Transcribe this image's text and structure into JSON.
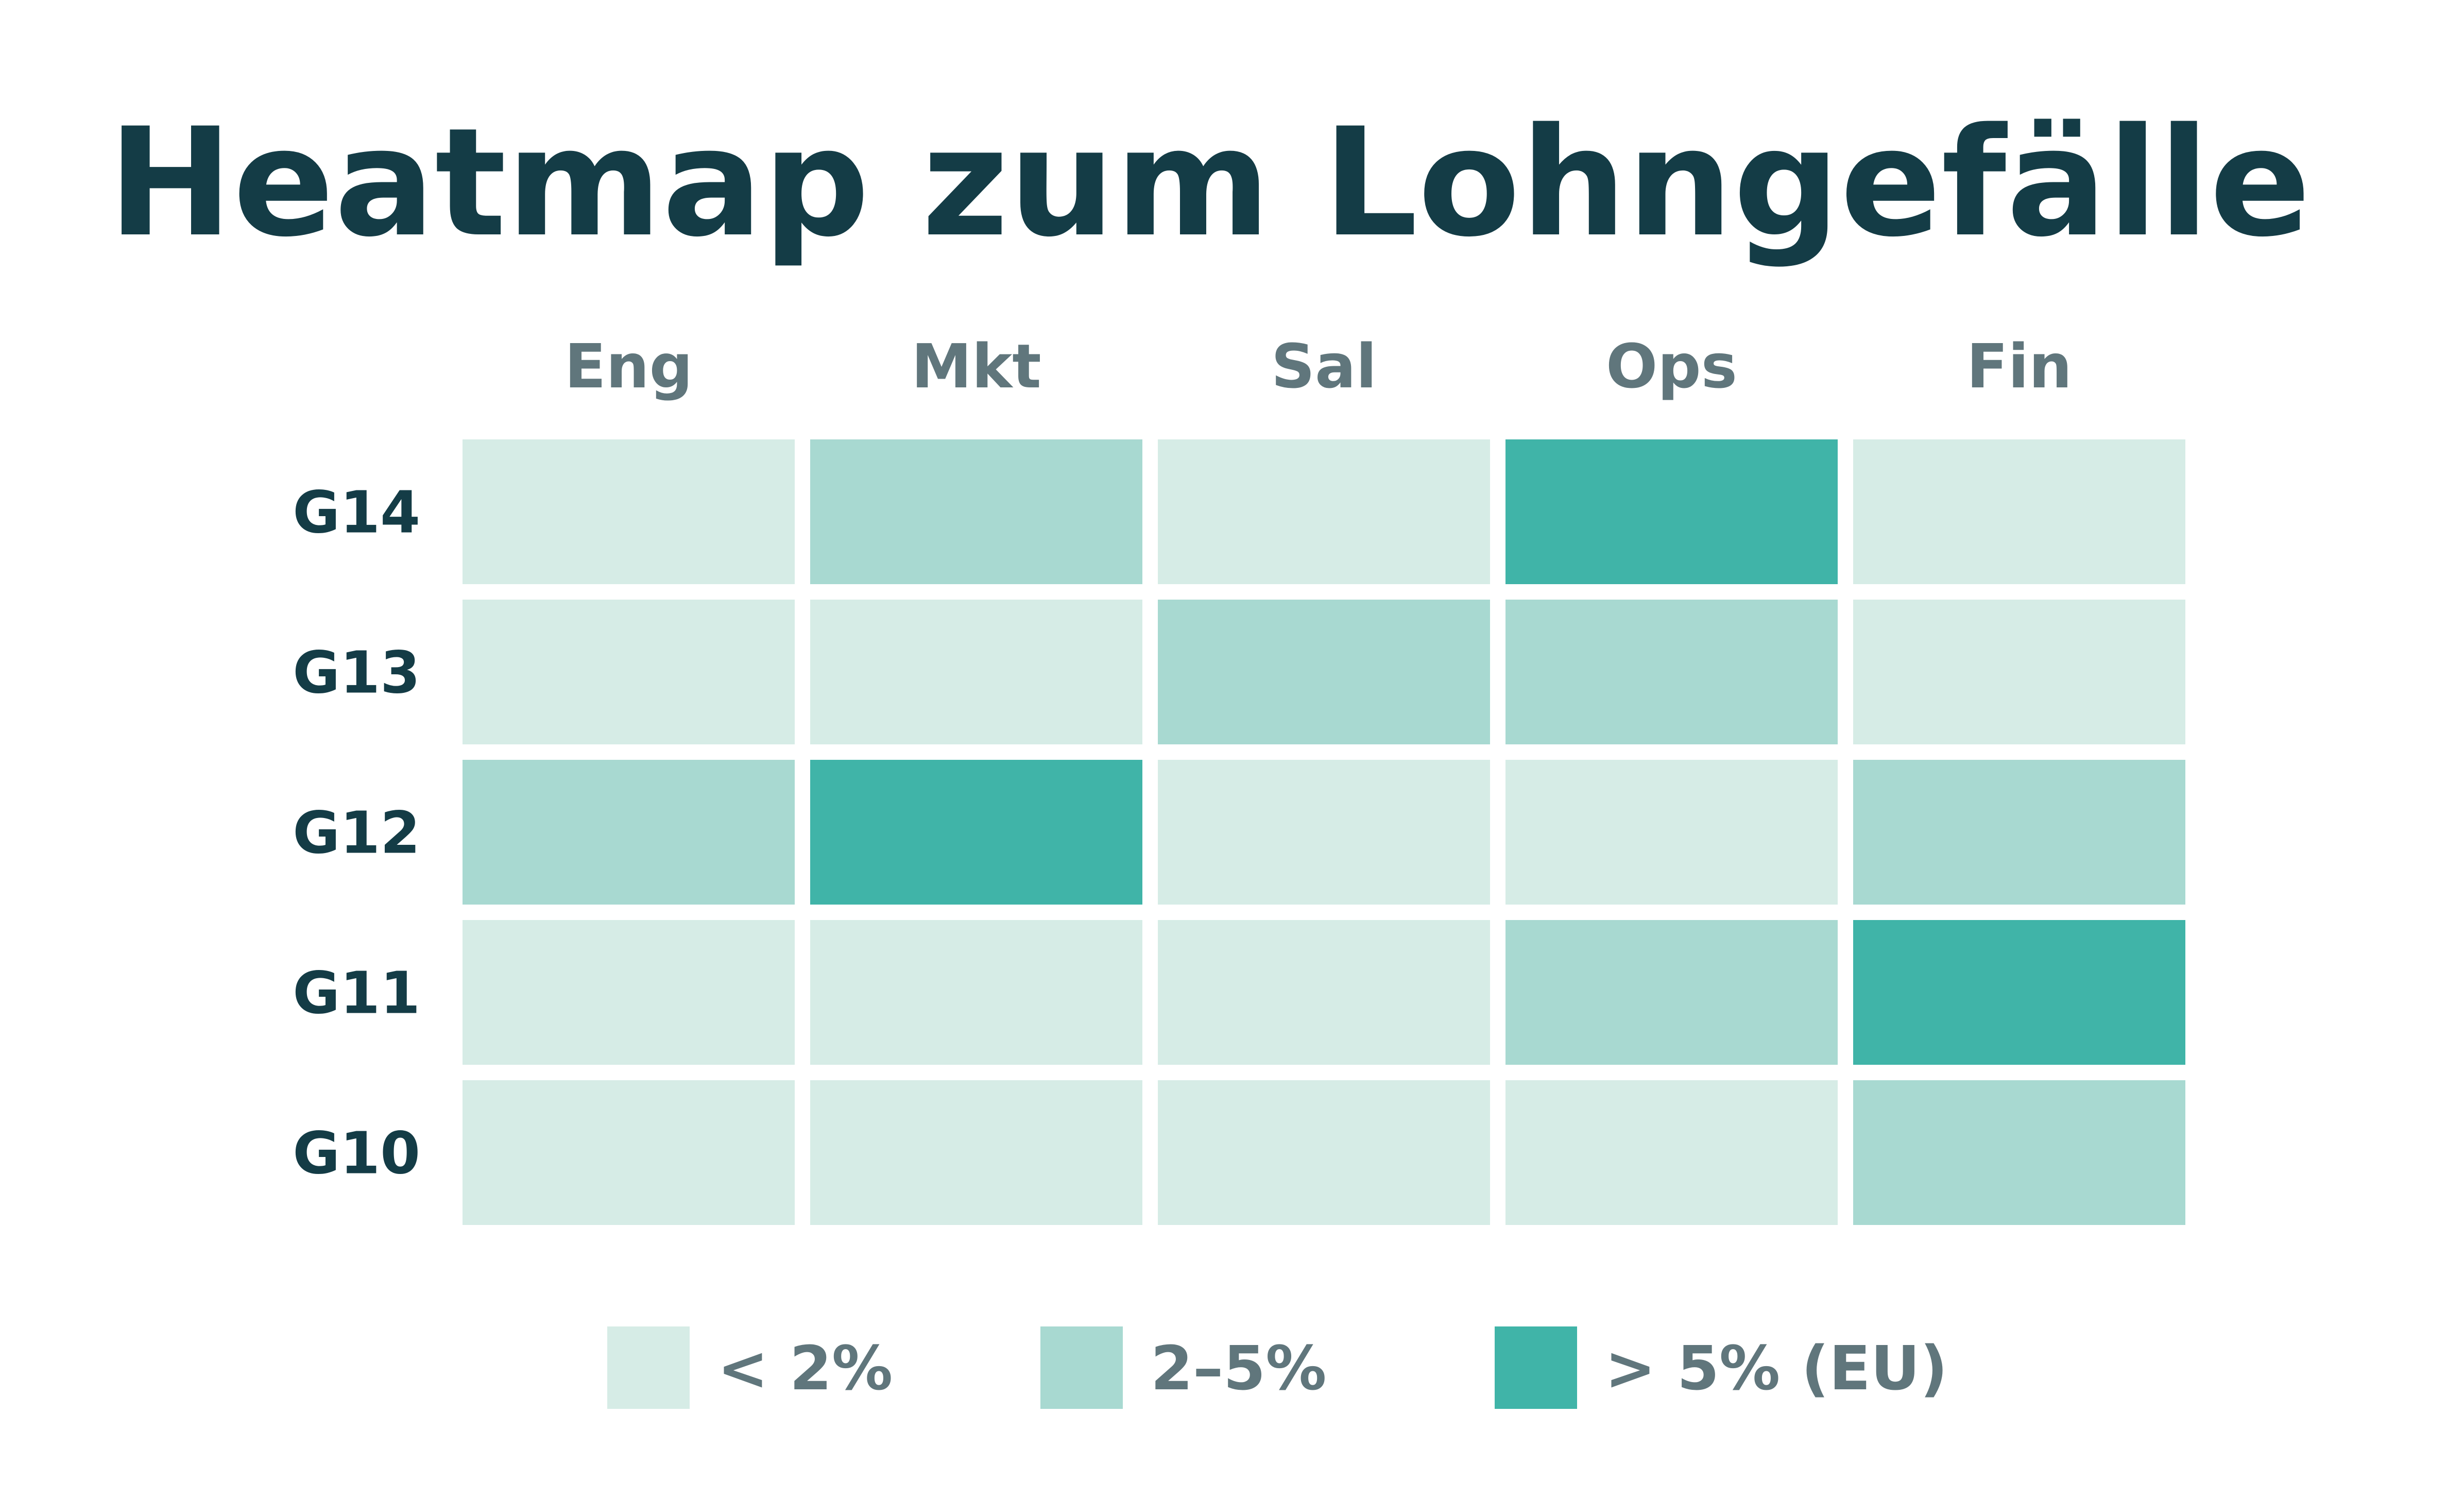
{
  "chart_data": {
    "type": "heatmap",
    "title": "Heatmap zum Lohngefälle",
    "columns": [
      "Eng",
      "Mkt",
      "Sal",
      "Ops",
      "Fin"
    ],
    "rows": [
      "G14",
      "G13",
      "G12",
      "G11",
      "G10"
    ],
    "values": [
      [
        0,
        1,
        0,
        2,
        0
      ],
      [
        0,
        0,
        1,
        1,
        0
      ],
      [
        1,
        2,
        0,
        0,
        1
      ],
      [
        0,
        0,
        0,
        1,
        2
      ],
      [
        0,
        0,
        0,
        0,
        1
      ]
    ],
    "categories": [
      {
        "label": "< 2%",
        "color": "#d6ece6"
      },
      {
        "label": "2–5%",
        "color": "#a8d9d1"
      },
      {
        "label": "> 5% (EU)",
        "color": "#40b4a8"
      }
    ],
    "legend_position": "bottom",
    "grid": false
  }
}
